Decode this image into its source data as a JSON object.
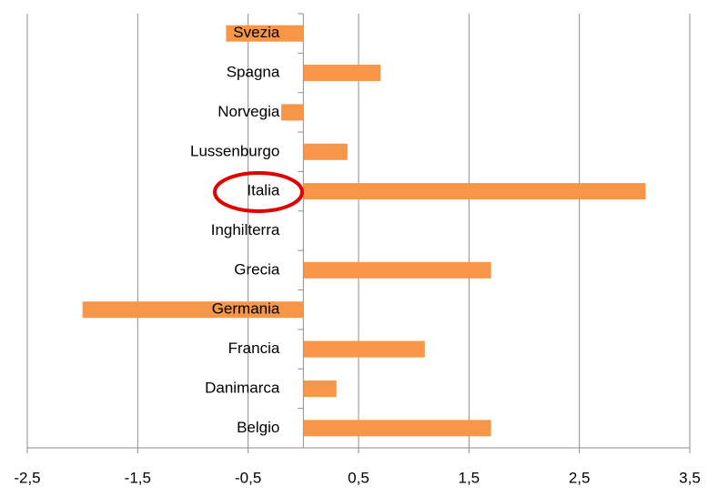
{
  "chart_data": {
    "type": "bar",
    "orientation": "horizontal",
    "categories": [
      "Svezia",
      "Spagna",
      "Norvegia",
      "Lussenburgo",
      "Italia",
      "Inghilterra",
      "Grecia",
      "Germania",
      "Francia",
      "Danimarca",
      "Belgio"
    ],
    "values": [
      -0.7,
      0.7,
      -0.2,
      0.4,
      3.1,
      0,
      1.7,
      -2.0,
      1.1,
      0.3,
      1.7
    ],
    "color": "#f79646",
    "xlim": [
      -2.5,
      3.5
    ],
    "xticks": [
      {
        "value": -2.5,
        "label": "-2,5"
      },
      {
        "value": -1.5,
        "label": "-1,5"
      },
      {
        "value": -0.5,
        "label": "-0,5"
      },
      {
        "value": 0.5,
        "label": "0,5"
      },
      {
        "value": 1.5,
        "label": "1,5"
      },
      {
        "value": 2.5,
        "label": "2,5"
      },
      {
        "value": 3.5,
        "label": "3,5"
      }
    ],
    "grid": true
  }
}
